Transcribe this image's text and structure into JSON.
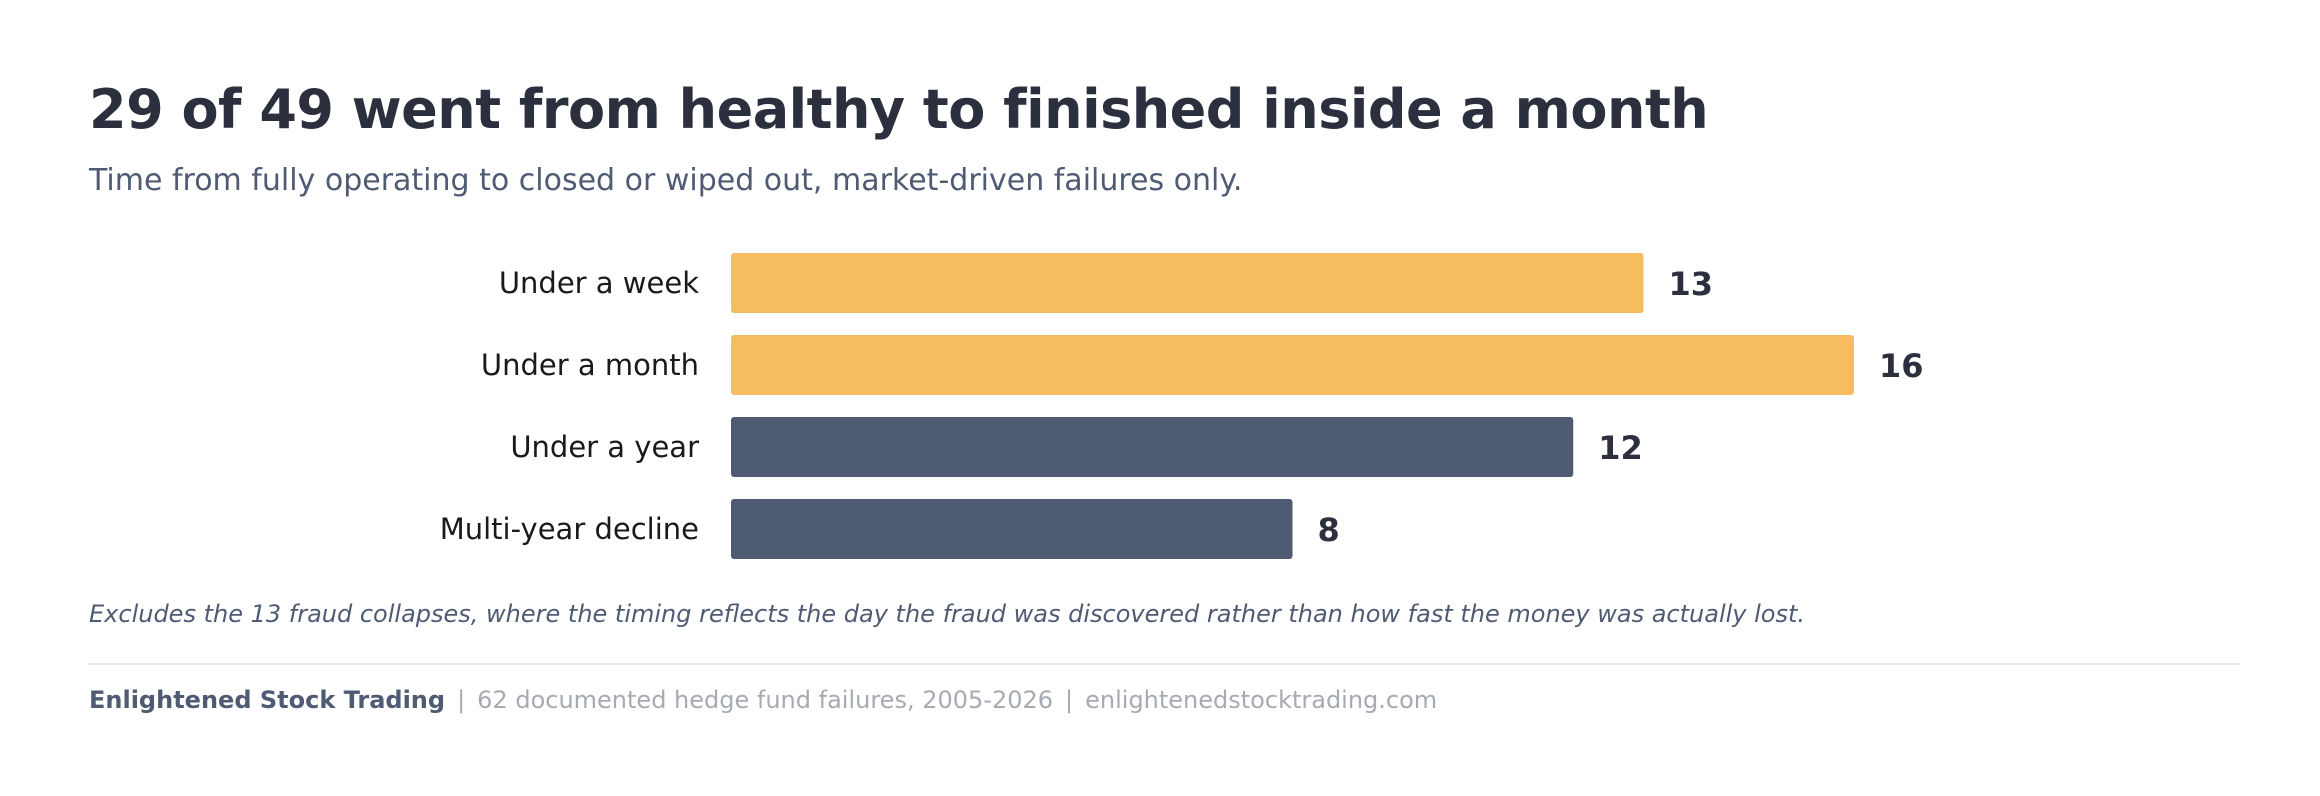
{
  "title": "29 of 49 went from healthy to finished inside a month",
  "subtitle": "Time from fully operating to closed or wiped out, market-driven failures only.",
  "note": "Excludes the 13 fraud collapses, where the timing reflects the day the fraud was discovered rather than how fast the money was actually lost.",
  "footer": {
    "brand": "Enlightened Stock Trading",
    "separator": "|",
    "source": "62 documented hedge fund failures, 2005-2026",
    "site": "enlightenedstocktrading.com"
  },
  "colors": {
    "highlight": "#f6bc5f",
    "base": "#4f5b73",
    "value_label": "#2b2f3e",
    "category_label": "#1a1a1a"
  },
  "chart_data": {
    "type": "bar",
    "orientation": "horizontal",
    "categories": [
      "Under a week",
      "Under a month",
      "Under a year",
      "Multi-year decline"
    ],
    "values": [
      13,
      16,
      12,
      8
    ],
    "highlighted": [
      true,
      true,
      false,
      false
    ],
    "xlim": [
      0,
      16
    ],
    "grid": false,
    "data_labels": true
  }
}
